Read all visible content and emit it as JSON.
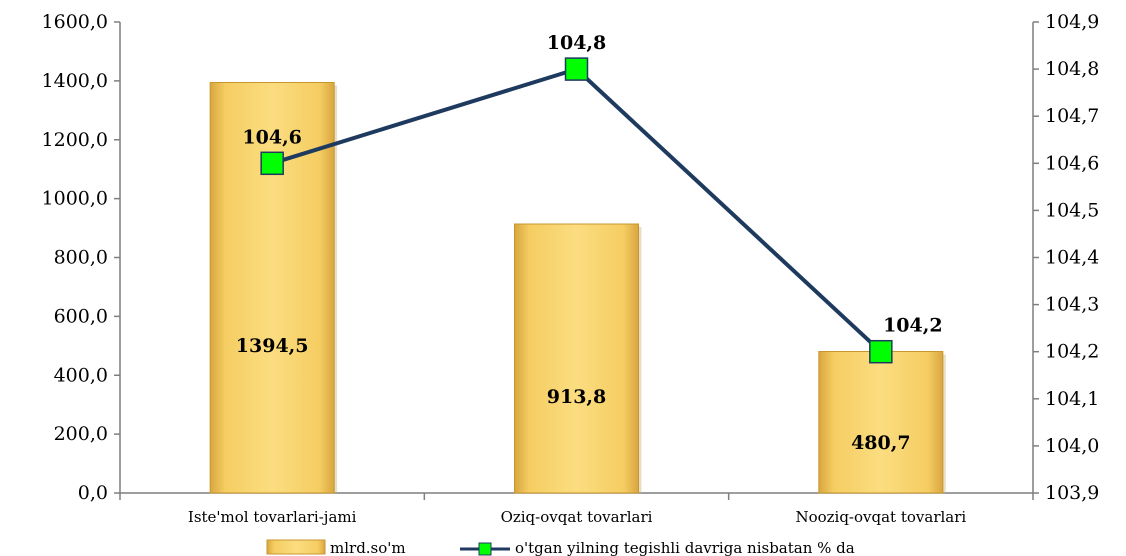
{
  "chart_data": {
    "type": "bar",
    "categories": [
      "Iste'mol tovarlari-jami",
      "Oziq-ovqat tovarlari",
      "Nooziq-ovqat tovarlari"
    ],
    "series": [
      {
        "name": "mlrd.so'm",
        "chart_type": "bar",
        "axis": "left",
        "values": [
          1394.5,
          913.8,
          480.7
        ],
        "labels": [
          "1394,5",
          "913,8",
          "480,7"
        ],
        "color": "#F7D36A"
      },
      {
        "name": "o'tgan yilning tegishli davriga nisbatan % da",
        "chart_type": "line",
        "axis": "right",
        "values": [
          104.6,
          104.8,
          104.2
        ],
        "labels": [
          "104,6",
          "104,8",
          "104,2"
        ],
        "line_color": "#1F3A5F",
        "marker_color": "#00FF00"
      }
    ],
    "y_left": {
      "ylim": [
        0,
        1600
      ],
      "ticks": [
        0,
        200,
        400,
        600,
        800,
        1000,
        1200,
        1400,
        1600
      ],
      "tick_labels": [
        "0,0",
        "200,0",
        "400,0",
        "600,0",
        "800,0",
        "1000,0",
        "1200,0",
        "1400,0",
        "1600,0"
      ]
    },
    "y_right": {
      "ylim": [
        103.9,
        104.9
      ],
      "ticks": [
        103.9,
        104.0,
        104.1,
        104.2,
        104.3,
        104.4,
        104.5,
        104.6,
        104.7,
        104.8,
        104.9
      ],
      "tick_labels": [
        "103,9",
        "104,0",
        "104,1",
        "104,2",
        "104,3",
        "104,4",
        "104,5",
        "104,6",
        "104,7",
        "104,8",
        "104,9"
      ]
    },
    "grid": false,
    "legend_position": "bottom"
  }
}
